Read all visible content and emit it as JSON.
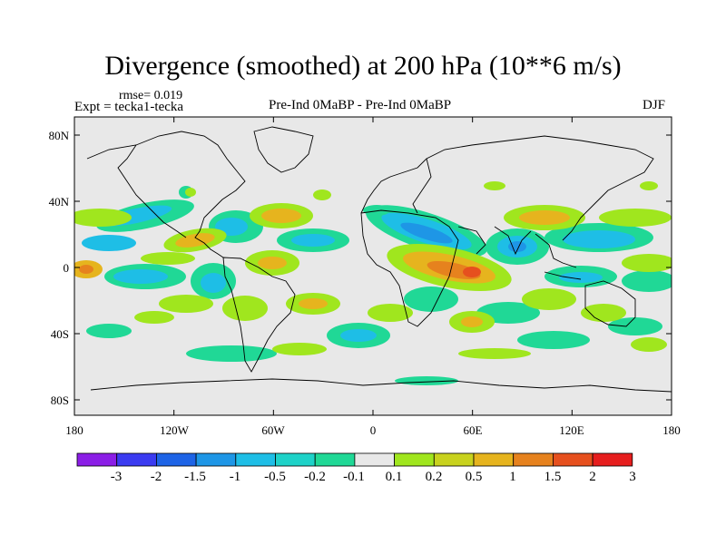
{
  "title": "Divergence (smoothed) at 200 hPa (10**6 m/s)",
  "subtitle": {
    "rmse": "rmse= 0.019",
    "expt": "Expt = tecka1-tecka",
    "center": "Pre-Ind 0MaBP - Pre-Ind 0MaBP",
    "season": "DJF"
  },
  "map": {
    "lon_ticks": [
      "180",
      "120W",
      "60W",
      "0",
      "60E",
      "120E",
      "180"
    ],
    "lat_ticks": [
      "80N",
      "40N",
      "0",
      "40S",
      "80S"
    ],
    "lon_range": [
      -180,
      180
    ],
    "lat_range": [
      -90,
      90
    ],
    "background_color": "#e8e8e8"
  },
  "colorbar": {
    "labels": [
      "-3",
      "-2",
      "-1.5",
      "-1",
      "-0.5",
      "-0.2",
      "-0.1",
      "0.1",
      "0.2",
      "0.5",
      "1",
      "1.5",
      "2",
      "3"
    ],
    "colors": [
      "#8b1ee6",
      "#3b3bf0",
      "#1e64e6",
      "#1e96e6",
      "#1ebee6",
      "#1ed2c8",
      "#20d896",
      "#e8e8e8",
      "#a0e61e",
      "#c8d21e",
      "#e6b41e",
      "#e6821e",
      "#e6501e",
      "#e61e1e"
    ]
  }
}
